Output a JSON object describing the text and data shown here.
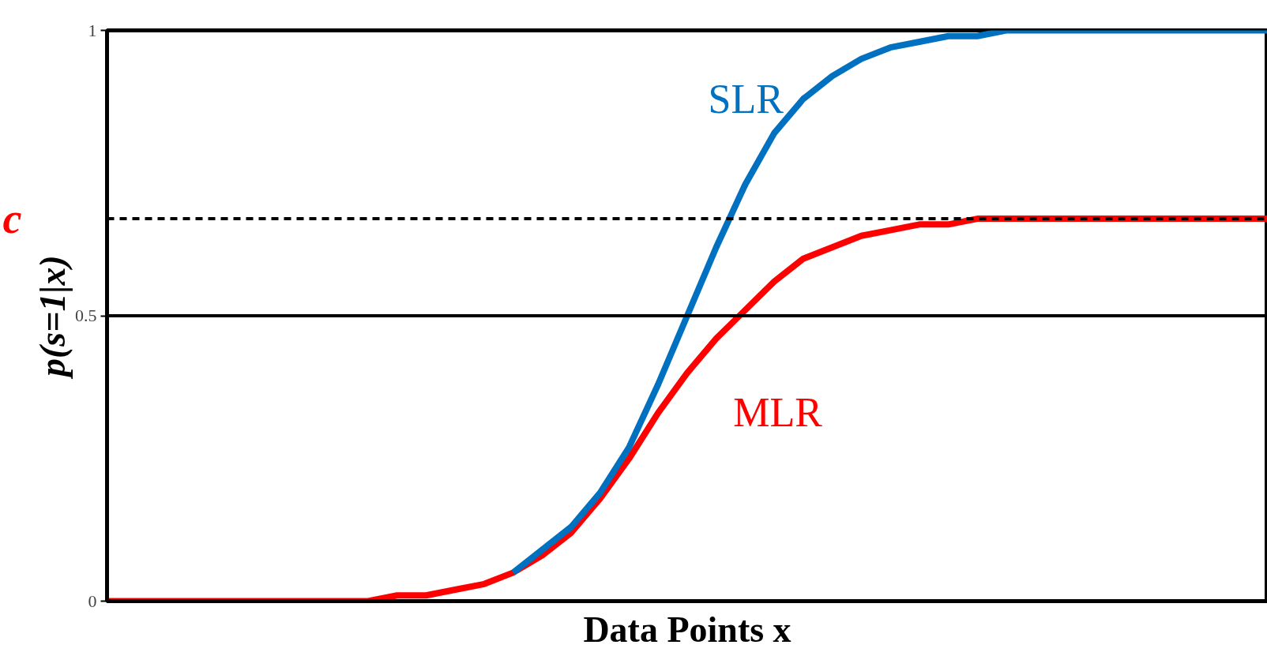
{
  "chart_data": {
    "type": "line",
    "xlabel": "Data Points x",
    "ylabel": "p(s=1|x)",
    "categories": [
      null,
      null,
      null,
      null,
      null,
      null,
      null,
      null,
      null,
      null,
      null,
      null,
      null,
      null,
      null,
      null,
      null,
      null,
      null,
      null,
      null,
      null,
      null,
      null,
      null,
      null,
      null,
      null,
      null,
      null,
      null,
      null,
      null,
      null,
      null,
      null,
      null,
      null,
      null,
      null,
      null
    ],
    "series": [
      {
        "name": "SLR",
        "color": "#0070c0",
        "values": [
          null,
          null,
          null,
          null,
          null,
          null,
          null,
          null,
          null,
          null,
          null,
          null,
          null,
          null,
          0.05,
          0.09,
          0.13,
          0.19,
          0.27,
          0.38,
          0.5,
          0.62,
          0.73,
          0.82,
          0.88,
          0.92,
          0.95,
          0.97,
          0.98,
          0.99,
          0.99,
          1,
          1,
          1,
          1,
          1,
          1,
          1,
          1,
          1,
          1
        ]
      },
      {
        "name": "MLR",
        "color": "#ff0000",
        "values": [
          0,
          0,
          0,
          0,
          0,
          0,
          0,
          0,
          0,
          0,
          0.01,
          0.01,
          0.02,
          0.03,
          0.05,
          0.08,
          0.12,
          0.18,
          0.25,
          0.33,
          0.4,
          0.46,
          0.51,
          0.56,
          0.6,
          0.62,
          0.64,
          0.65,
          0.66,
          0.66,
          0.67,
          0.67,
          0.67,
          0.67,
          0.67,
          0.67,
          0.67,
          0.67,
          0.67,
          0.67,
          0.67
        ]
      }
    ],
    "ylim": [
      0,
      1
    ],
    "yticks": [
      0,
      0.5,
      1
    ],
    "tick_labels": "y",
    "ref_lines": [
      {
        "axis": "y",
        "value": 0.5,
        "label": null,
        "color": "#000000",
        "line_style": "solid"
      },
      {
        "axis": "y",
        "value": 0.67,
        "label": "c",
        "color": "#000000",
        "line_style": "dashed"
      }
    ],
    "grid": false,
    "marker": "none",
    "line_style": "solid"
  }
}
